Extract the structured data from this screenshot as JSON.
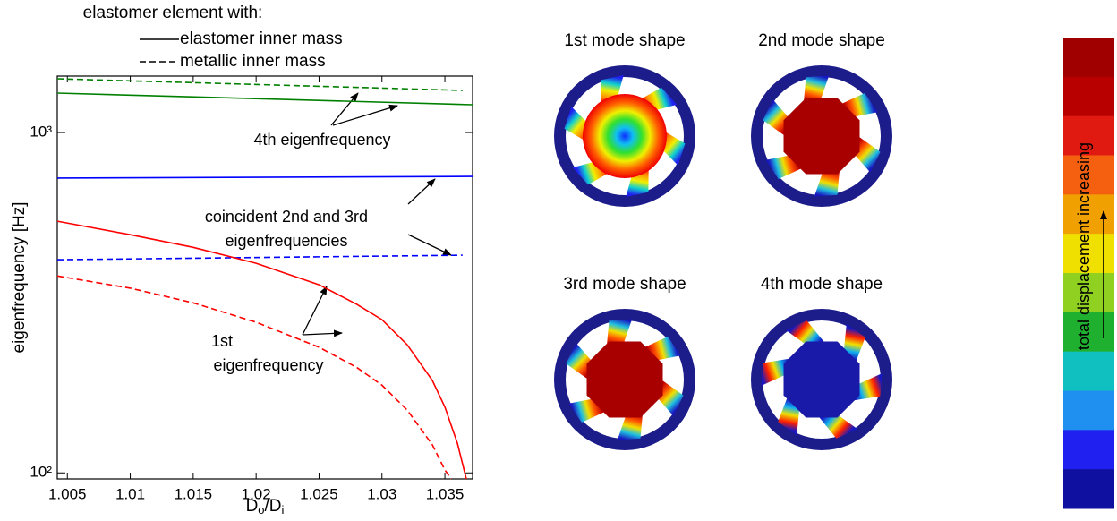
{
  "chart_data": {
    "type": "line",
    "legend_title": "elastomer element with:",
    "legend": [
      {
        "label": "elastomer inner mass",
        "style": "solid"
      },
      {
        "label": "metallic inner mass",
        "style": "dashed"
      }
    ],
    "ylabel": "eigenfrequency [Hz]",
    "xlabel_parts": [
      "D",
      "o",
      "/D",
      "i"
    ],
    "xlim": [
      1.0042,
      1.0372
    ],
    "xticks": [
      1.005,
      1.01,
      1.015,
      1.02,
      1.025,
      1.03,
      1.035
    ],
    "ylim": [
      96,
      1465
    ],
    "log_y": true,
    "yticks": [
      {
        "value": 100,
        "label": "10²"
      },
      {
        "value": 1000,
        "label": "10³"
      }
    ],
    "series": [
      {
        "color": "#008000",
        "style": "solid",
        "x": [
          1.0042,
          1.0372
        ],
        "values": [
          1306,
          1207
        ]
      },
      {
        "color": "#008000",
        "style": "dashed",
        "x": [
          1.0042,
          1.0364
        ],
        "values": [
          1439,
          1330
        ]
      },
      {
        "color": "#0000ff",
        "style": "solid",
        "x": [
          1.0042,
          1.0372
        ],
        "values": [
          735,
          743
        ]
      },
      {
        "color": "#0000ff",
        "style": "dashed",
        "x": [
          1.0042,
          1.0364
        ],
        "values": [
          423,
          436
        ]
      },
      {
        "color": "#ff0000",
        "style": "solid",
        "x": [
          1.0042,
          1.01,
          1.015,
          1.02,
          1.025,
          1.028,
          1.03,
          1.032,
          1.034,
          1.035,
          1.036,
          1.0367
        ],
        "values": [
          549,
          501,
          460,
          413,
          357,
          313,
          282,
          238,
          187,
          156,
          122,
          96
        ]
      },
      {
        "color": "#ff0000",
        "style": "dashed",
        "x": [
          1.0042,
          1.01,
          1.015,
          1.02,
          1.025,
          1.028,
          1.03,
          1.032,
          1.034,
          1.035,
          1.0355
        ],
        "values": [
          379,
          349,
          316,
          277,
          234,
          204,
          181,
          153,
          121,
          102,
          96
        ]
      }
    ],
    "annotations": [
      {
        "lines": [
          "4th eigenfrequency"
        ]
      },
      {
        "lines": [
          "coincident 2nd and 3rd",
          "eigenfrequencies"
        ]
      },
      {
        "lines": [
          "1st",
          "eigenfrequency"
        ]
      }
    ]
  },
  "mode_shapes": {
    "titles": [
      "1st mode shape",
      "2nd mode shape",
      "3rd mode shape",
      "4th mode shape"
    ]
  },
  "colorbar": {
    "label": "total displacement increasing",
    "colors": [
      "#a00000",
      "#b80000",
      "#e01a10",
      "#f46010",
      "#f0a000",
      "#f0e000",
      "#90d020",
      "#20b030",
      "#10c0c0",
      "#2090f0",
      "#2020f0",
      "#1010a0"
    ]
  }
}
